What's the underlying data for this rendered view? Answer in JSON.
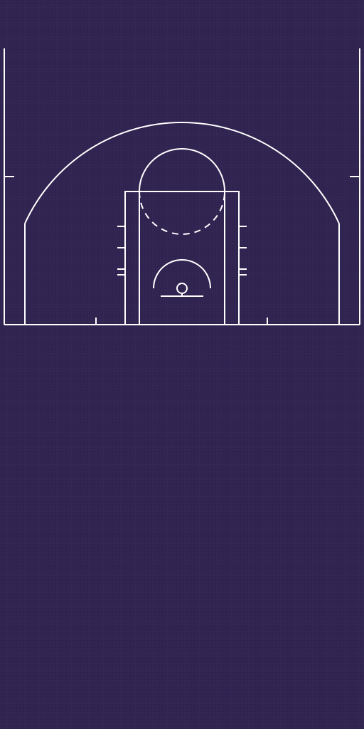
{
  "court": {
    "surface_color": "#2f2250",
    "line_color": "#ffffff",
    "view": "half-court",
    "features": [
      "sideline-left",
      "sideline-right",
      "baseline",
      "three-point-arc",
      "three-point-corner-left",
      "three-point-corner-right",
      "coaching-box-mark-left",
      "coaching-box-mark-right",
      "outer-key",
      "inner-key",
      "free-throw-circle-top",
      "free-throw-circle-bottom-dashed",
      "lane-hash-marks",
      "restricted-area-arc",
      "backboard",
      "hoop",
      "baseline-tick-marks"
    ]
  }
}
